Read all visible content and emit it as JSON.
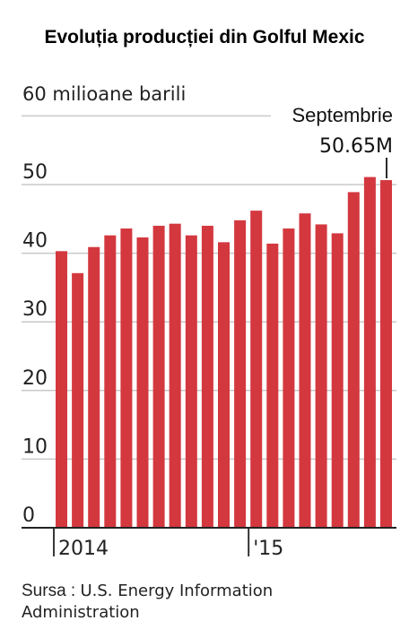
{
  "title": "Evoluția producției din Golful Mexic",
  "source": {
    "prefix": "Sursa",
    "separator": " : ",
    "line1": "U.S. Energy Information",
    "line2": "Administration"
  },
  "chart_data": {
    "type": "bar",
    "unit_label": "60 milioane barili",
    "ylim": [
      0,
      60
    ],
    "y_ticks": [
      0,
      10,
      20,
      30,
      40,
      50
    ],
    "grid": true,
    "bar_color": "#d4383f",
    "x_tick_labels": [
      "2014",
      "'15"
    ],
    "categories": [
      "Ian 2014",
      "Feb 2014",
      "Mar 2014",
      "Apr 2014",
      "Mai 2014",
      "Iun 2014",
      "Iul 2014",
      "Aug 2014",
      "Sep 2014",
      "Oct 2014",
      "Noi 2014",
      "Dec 2014",
      "Ian 2015",
      "Feb 2015",
      "Mar 2015",
      "Apr 2015",
      "Mai 2015",
      "Iun 2015",
      "Iul 2015",
      "Aug 2015",
      "Sep 2015"
    ],
    "values": [
      40.3,
      37.1,
      40.9,
      42.6,
      43.6,
      42.3,
      44.0,
      44.3,
      42.6,
      44.0,
      41.6,
      44.8,
      46.2,
      41.4,
      43.6,
      45.8,
      44.2,
      42.9,
      48.9,
      51.1,
      50.65
    ],
    "annotation": {
      "label": "Septembrie",
      "value_text": "50.65M"
    }
  }
}
